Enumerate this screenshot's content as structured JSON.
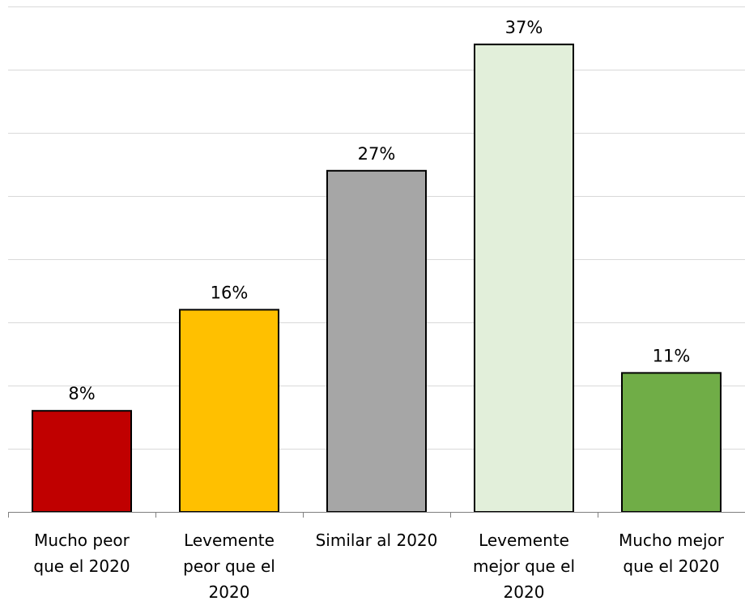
{
  "chart_data": {
    "type": "bar",
    "categories": [
      [
        "Mucho peor",
        "que el 2020"
      ],
      [
        "Levemente",
        "peor que el",
        "2020"
      ],
      [
        "Similar al 2020"
      ],
      [
        "Levemente",
        "mejor que el",
        "2020"
      ],
      [
        "Mucho mejor",
        "que el 2020"
      ]
    ],
    "values": [
      8,
      16,
      27,
      37,
      11
    ],
    "data_labels": [
      "8%",
      "16%",
      "27%",
      "37%",
      "11%"
    ],
    "colors": [
      "#c00000",
      "#ffc000",
      "#a6a6a6",
      "#e2efda",
      "#70ad47"
    ],
    "ylim": [
      0,
      40
    ],
    "y_gridlines": [
      5,
      10,
      15,
      20,
      25,
      30,
      35,
      40
    ],
    "title": "",
    "xlabel": "",
    "ylabel": "",
    "grid": true,
    "legend": "none"
  }
}
